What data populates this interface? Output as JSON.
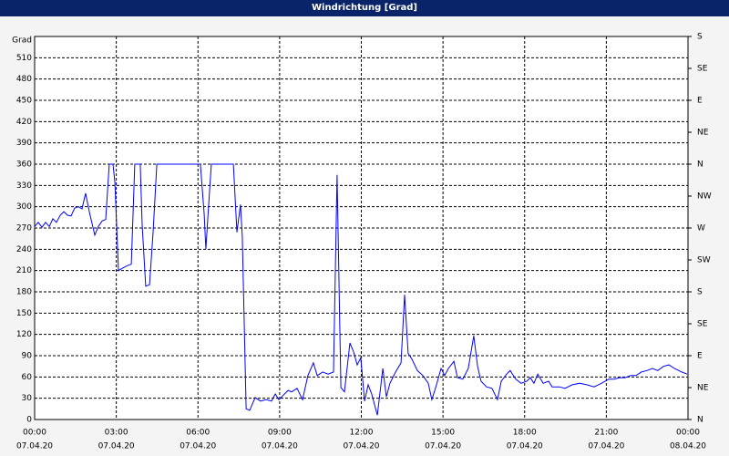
{
  "chart_data": {
    "type": "line",
    "title": "Windrichtung [Grad]",
    "y_label": "Grad",
    "x": [
      0,
      0.13,
      0.27,
      0.4,
      0.54,
      0.67,
      0.8,
      0.94,
      1.07,
      1.21,
      1.34,
      1.47,
      1.61,
      1.74,
      1.87,
      2.01,
      2.21,
      2.34,
      2.48,
      2.61,
      2.74,
      2.88,
      2.95,
      3.08,
      3.21,
      3.41,
      3.55,
      3.68,
      3.88,
      3.95,
      4.08,
      4.22,
      4.35,
      4.49,
      6.09,
      6.23,
      6.29,
      6.36,
      6.49,
      7.3,
      7.43,
      7.56,
      7.63,
      7.77,
      7.9,
      8.1,
      8.3,
      8.5,
      8.7,
      8.84,
      8.97,
      9.1,
      9.31,
      9.44,
      9.64,
      9.84,
      10.04,
      10.24,
      10.38,
      10.58,
      10.78,
      10.98,
      11.11,
      11.25,
      11.38,
      11.58,
      11.72,
      11.85,
      11.98,
      12.12,
      12.25,
      12.38,
      12.59,
      12.79,
      12.92,
      13.05,
      13.26,
      13.46,
      13.59,
      13.72,
      13.86,
      14.06,
      14.26,
      14.46,
      14.59,
      14.73,
      14.93,
      15.06,
      15.2,
      15.4,
      15.53,
      15.73,
      15.93,
      16.13,
      16.27,
      16.4,
      16.6,
      16.8,
      17.0,
      17.14,
      17.34,
      17.47,
      17.67,
      17.87,
      18.08,
      18.21,
      18.34,
      18.48,
      18.68,
      18.88,
      19.01,
      19.28,
      19.48,
      19.75,
      20.02,
      20.28,
      20.55,
      20.82,
      21.09,
      21.29,
      21.49,
      21.69,
      21.89,
      22.09,
      22.29,
      22.49,
      22.69,
      22.89,
      23.1,
      23.3,
      23.5,
      23.77,
      23.97
    ],
    "series": [
      {
        "color": "#0000ff",
        "values": [
          272,
          278,
          271,
          278,
          272,
          283,
          278,
          288,
          293,
          288,
          287,
          298,
          300,
          297,
          319,
          293,
          260,
          272,
          280,
          282,
          360,
          360,
          334,
          210,
          213,
          217,
          219,
          360,
          360,
          275,
          188,
          190,
          264,
          360,
          360,
          289,
          240,
          283,
          360,
          360,
          264,
          303,
          258,
          15,
          13,
          31,
          26,
          28,
          26,
          36,
          28,
          33,
          41,
          39,
          44,
          28,
          62,
          80,
          62,
          67,
          64,
          67,
          345,
          45,
          39,
          108,
          95,
          77,
          87,
          26,
          49,
          36,
          6,
          72,
          32,
          51,
          67,
          80,
          176,
          93,
          85,
          69,
          62,
          51,
          28,
          45,
          72,
          62,
          72,
          82,
          59,
          57,
          72,
          118,
          75,
          54,
          46,
          44,
          28,
          54,
          64,
          69,
          57,
          51,
          54,
          59,
          51,
          64,
          51,
          54,
          46,
          46,
          44,
          49,
          51,
          49,
          46,
          51,
          57,
          57,
          59,
          59,
          62,
          62,
          67,
          69,
          72,
          69,
          75,
          77,
          72,
          67,
          64
        ]
      }
    ],
    "xlim": [
      0,
      24
    ],
    "xticks": [
      {
        "value": 0,
        "label": "00:00"
      },
      {
        "value": 3,
        "label": "03:00"
      },
      {
        "value": 6,
        "label": "06:00"
      },
      {
        "value": 9,
        "label": "09:00"
      },
      {
        "value": 12,
        "label": "12:00"
      },
      {
        "value": 15,
        "label": "15:00"
      },
      {
        "value": 18,
        "label": "18:00"
      },
      {
        "value": 21,
        "label": "21:00"
      },
      {
        "value": 24,
        "label": "00:00"
      }
    ],
    "xtick_dates": [
      "07.04.20",
      "07.04.20",
      "07.04.20",
      "07.04.20",
      "07.04.20",
      "07.04.20",
      "07.04.20",
      "07.04.20",
      "08.04.20"
    ],
    "ylim": [
      0,
      540
    ],
    "yticks": [
      0,
      30,
      60,
      90,
      120,
      150,
      180,
      210,
      240,
      270,
      300,
      330,
      360,
      390,
      420,
      450,
      480,
      510
    ],
    "y2lim": [
      0,
      540
    ],
    "y2ticks": [
      {
        "value": 0,
        "label": "N"
      },
      {
        "value": 45,
        "label": "NE"
      },
      {
        "value": 90,
        "label": "E"
      },
      {
        "value": 135,
        "label": "SE"
      },
      {
        "value": 180,
        "label": "S"
      },
      {
        "value": 225,
        "label": "SW"
      },
      {
        "value": 270,
        "label": "W"
      },
      {
        "value": 315,
        "label": "NW"
      },
      {
        "value": 360,
        "label": "N"
      },
      {
        "value": 405,
        "label": "NE"
      },
      {
        "value": 450,
        "label": "E"
      },
      {
        "value": 495,
        "label": "SE"
      },
      {
        "value": 540,
        "label": "S"
      }
    ],
    "grid": true
  }
}
